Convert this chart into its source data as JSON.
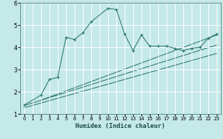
{
  "xlabel": "Humidex (Indice chaleur)",
  "bg_color": "#c5e8e8",
  "grid_color": "#ffffff",
  "line_color": "#2e7a6b",
  "xlim": [
    -0.5,
    23.5
  ],
  "ylim": [
    1,
    6
  ],
  "xticks": [
    0,
    1,
    2,
    3,
    4,
    5,
    6,
    7,
    8,
    9,
    10,
    11,
    12,
    13,
    14,
    15,
    16,
    17,
    18,
    19,
    20,
    21,
    22,
    23
  ],
  "yticks": [
    1,
    2,
    3,
    4,
    5,
    6
  ],
  "main_x": [
    0,
    2,
    3,
    4,
    5,
    6,
    7,
    8,
    10,
    11,
    12,
    13,
    14,
    15,
    16,
    17,
    18,
    19,
    20,
    21,
    22,
    23
  ],
  "main_y": [
    1.4,
    1.85,
    2.55,
    2.65,
    4.45,
    4.35,
    4.65,
    5.15,
    5.75,
    5.7,
    4.6,
    3.85,
    4.55,
    4.05,
    4.05,
    4.05,
    3.95,
    3.85,
    3.95,
    4.0,
    4.4,
    4.6
  ],
  "line1_x": [
    2,
    23
  ],
  "line1_y": [
    1.62,
    4.55
  ],
  "line2_x": [
    0,
    23
  ],
  "line2_y": [
    1.38,
    4.1
  ],
  "line3_x": [
    0,
    23
  ],
  "line3_y": [
    1.28,
    3.72
  ]
}
